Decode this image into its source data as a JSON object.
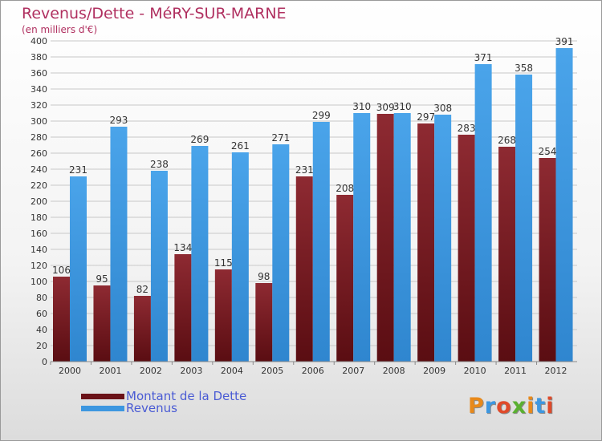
{
  "header": {
    "title": "Revenus/Dette - MéRY-SUR-MARNE",
    "subtitle": "(en milliers d'€)"
  },
  "colors": {
    "dette": "#7a1e25",
    "revenus": "#3d97e0",
    "title": "#b03060",
    "legend_text": "#4a5bd4",
    "grid": "#c8c8c8"
  },
  "legend": {
    "dette_label": "Montant de la Dette",
    "revenus_label": "Revenus"
  },
  "logo": {
    "text": "Proxiti"
  },
  "chart_data": {
    "type": "bar",
    "title": "Revenus/Dette - MéRY-SUR-MARNE",
    "subtitle": "(en milliers d'€)",
    "xlabel": "",
    "ylabel": "",
    "ylim": [
      0,
      400
    ],
    "ytick_step": 20,
    "grid": true,
    "legend_position": "bottom-left",
    "categories": [
      "2000",
      "2001",
      "2002",
      "2003",
      "2004",
      "2005",
      "2006",
      "2007",
      "2008",
      "2009",
      "2010",
      "2011",
      "2012"
    ],
    "series": [
      {
        "name": "Montant de la Dette",
        "color": "#7a1e25",
        "values": [
          106,
          95,
          82,
          134,
          115,
          98,
          231,
          208,
          309,
          297,
          283,
          268,
          254
        ]
      },
      {
        "name": "Revenus",
        "color": "#3d97e0",
        "values": [
          231,
          293,
          238,
          269,
          261,
          271,
          299,
          310,
          310,
          308,
          371,
          358,
          391
        ]
      }
    ]
  }
}
